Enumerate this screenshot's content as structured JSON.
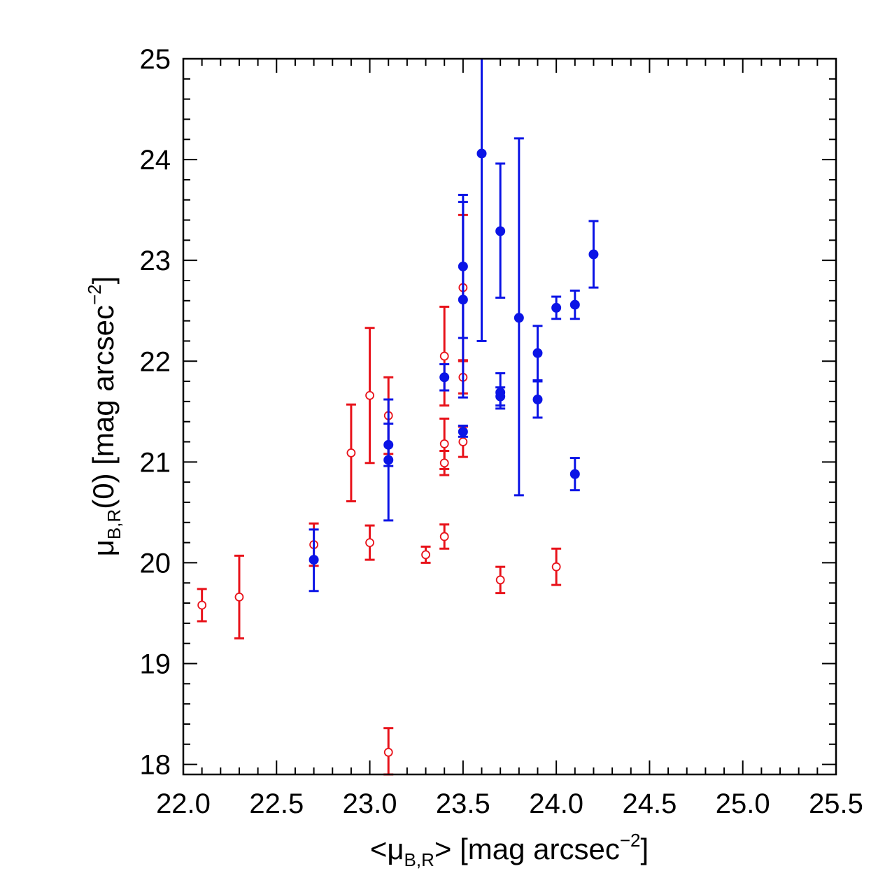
{
  "chart_data": {
    "type": "scatter",
    "title": "",
    "xlabel": {
      "prefix": "<μ",
      "sub": "B,R",
      "mid": "> [mag arcsec",
      "sup": "−2",
      "suffix": "]"
    },
    "ylabel": {
      "prefix": "μ",
      "sub": "B,R",
      "mid": "(0) [mag arcsec",
      "sup": "−2",
      "suffix": "]"
    },
    "xlim": [
      22.0,
      25.5
    ],
    "ylim": [
      17.9,
      25.0
    ],
    "x_ticks": [
      "22.0",
      "22.5",
      "23.0",
      "23.5",
      "24.0",
      "24.5",
      "25.0",
      "25.5"
    ],
    "x_tick_values": [
      22.0,
      22.5,
      23.0,
      23.5,
      24.0,
      24.5,
      25.0,
      25.5
    ],
    "y_ticks": [
      "18",
      "19",
      "20",
      "21",
      "22",
      "23",
      "24",
      "25"
    ],
    "y_tick_values": [
      18,
      19,
      20,
      21,
      22,
      23,
      24,
      25
    ],
    "grid": false,
    "legend": "none",
    "series": [
      {
        "marker": "open-circle",
        "color": "#e8131b",
        "points": [
          {
            "x": 22.1,
            "y": 19.58,
            "lo": 19.42,
            "hi": 19.74
          },
          {
            "x": 22.3,
            "y": 19.66,
            "lo": 19.25,
            "hi": 20.07
          },
          {
            "x": 22.7,
            "y": 20.18,
            "lo": 19.97,
            "hi": 20.39
          },
          {
            "x": 22.9,
            "y": 21.09,
            "lo": 20.61,
            "hi": 21.57
          },
          {
            "x": 23.0,
            "y": 21.66,
            "lo": 20.99,
            "hi": 22.33
          },
          {
            "x": 23.0,
            "y": 20.2,
            "lo": 20.03,
            "hi": 20.37
          },
          {
            "x": 23.1,
            "y": 21.46,
            "lo": 21.08,
            "hi": 21.84
          },
          {
            "x": 23.1,
            "y": 18.12,
            "lo": 17.9,
            "hi": 18.36
          },
          {
            "x": 23.3,
            "y": 20.08,
            "lo": 20.0,
            "hi": 20.16
          },
          {
            "x": 23.4,
            "y": 22.05,
            "lo": 21.56,
            "hi": 22.54
          },
          {
            "x": 23.4,
            "y": 21.18,
            "lo": 20.93,
            "hi": 21.43
          },
          {
            "x": 23.4,
            "y": 20.99,
            "lo": 20.87,
            "hi": 21.11
          },
          {
            "x": 23.4,
            "y": 20.26,
            "lo": 20.14,
            "hi": 20.38
          },
          {
            "x": 23.5,
            "y": 22.73,
            "lo": 22.01,
            "hi": 23.45
          },
          {
            "x": 23.5,
            "y": 21.84,
            "lo": 21.68,
            "hi": 22.0
          },
          {
            "x": 23.5,
            "y": 21.2,
            "lo": 21.05,
            "hi": 21.35
          },
          {
            "x": 23.7,
            "y": 19.83,
            "lo": 19.7,
            "hi": 19.96
          },
          {
            "x": 24.0,
            "y": 19.96,
            "lo": 19.78,
            "hi": 20.14
          }
        ]
      },
      {
        "marker": "filled-circle",
        "color": "#0b14e6",
        "points": [
          {
            "x": 22.7,
            "y": 20.03,
            "lo": 19.72,
            "hi": 20.33
          },
          {
            "x": 23.1,
            "y": 21.17,
            "lo": 20.96,
            "hi": 21.38
          },
          {
            "x": 23.1,
            "y": 21.02,
            "lo": 20.42,
            "hi": 21.62
          },
          {
            "x": 23.4,
            "y": 21.84,
            "lo": 21.71,
            "hi": 21.97
          },
          {
            "x": 23.5,
            "y": 22.94,
            "lo": 22.23,
            "hi": 23.65
          },
          {
            "x": 23.5,
            "y": 22.61,
            "lo": 21.64,
            "hi": 23.58
          },
          {
            "x": 23.5,
            "y": 21.3,
            "lo": 21.25,
            "hi": 21.36
          },
          {
            "x": 23.6,
            "y": 24.06,
            "lo": 22.2,
            "hi": 25.0
          },
          {
            "x": 23.7,
            "y": 23.29,
            "lo": 22.63,
            "hi": 23.96
          },
          {
            "x": 23.7,
            "y": 21.69,
            "lo": 21.53,
            "hi": 21.88
          },
          {
            "x": 23.7,
            "y": 21.65,
            "lo": 21.56,
            "hi": 21.74
          },
          {
            "x": 23.8,
            "y": 22.43,
            "lo": 20.67,
            "hi": 24.21
          },
          {
            "x": 23.9,
            "y": 22.08,
            "lo": 21.81,
            "hi": 22.35
          },
          {
            "x": 23.9,
            "y": 21.62,
            "lo": 21.44,
            "hi": 21.8
          },
          {
            "x": 24.0,
            "y": 22.53,
            "lo": 22.42,
            "hi": 22.64
          },
          {
            "x": 24.1,
            "y": 22.56,
            "lo": 22.42,
            "hi": 22.7
          },
          {
            "x": 24.1,
            "y": 20.88,
            "lo": 20.72,
            "hi": 21.04
          },
          {
            "x": 24.2,
            "y": 23.06,
            "lo": 22.73,
            "hi": 23.39
          }
        ]
      }
    ]
  }
}
